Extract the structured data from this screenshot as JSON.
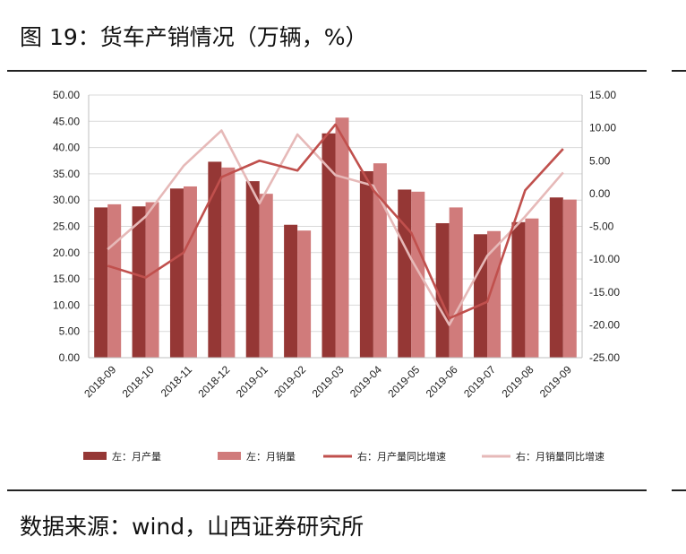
{
  "figure": {
    "title": "图 19：货车产销情况（万辆，%）",
    "source": "数据来源：wind，山西证券研究所"
  },
  "chart_data": {
    "type": "bar",
    "categories": [
      "2018-09",
      "2018-10",
      "2018-11",
      "2018-12",
      "2019-01",
      "2019-02",
      "2019-03",
      "2019-04",
      "2019-05",
      "2019-06",
      "2019-07",
      "2019-08",
      "2019-09"
    ],
    "y_left": {
      "min": 0,
      "max": 50,
      "step": 5,
      "ticks": [
        "0.00",
        "5.00",
        "10.00",
        "15.00",
        "20.00",
        "25.00",
        "30.00",
        "35.00",
        "40.00",
        "45.00",
        "50.00"
      ]
    },
    "y_right": {
      "min": -25,
      "max": 15,
      "step": 5,
      "ticks": [
        "-25.00",
        "-20.00",
        "-15.00",
        "-10.00",
        "-5.00",
        "0.00",
        "5.00",
        "10.00",
        "15.00"
      ]
    },
    "grid": true,
    "legend_position": "bottom",
    "series": [
      {
        "name": "左：月产量",
        "type": "bar",
        "axis": "left",
        "color": "#953735",
        "values": [
          28.6,
          28.8,
          32.2,
          37.3,
          33.6,
          25.3,
          42.7,
          35.5,
          32.0,
          25.6,
          23.5,
          25.8,
          30.5
        ]
      },
      {
        "name": "左：月销量",
        "type": "bar",
        "axis": "left",
        "color": "#D07B7B",
        "values": [
          29.2,
          29.6,
          32.6,
          36.2,
          31.2,
          24.2,
          45.7,
          37.0,
          31.6,
          28.6,
          24.1,
          26.5,
          30.1
        ]
      },
      {
        "name": "右：月产量同比增速",
        "type": "line",
        "axis": "right",
        "color": "#C0504D",
        "values": [
          -11.0,
          -12.8,
          -9.0,
          2.5,
          5.0,
          3.5,
          10.5,
          0.5,
          -6.0,
          -19.0,
          -16.5,
          0.5,
          6.8
        ]
      },
      {
        "name": "右：月销量同比增速",
        "type": "line",
        "axis": "right",
        "color": "#E6B9B8",
        "values": [
          -8.5,
          -3.5,
          4.2,
          9.6,
          -1.5,
          9.0,
          2.8,
          1.2,
          -10.0,
          -20.0,
          -9.5,
          -3.5,
          3.2
        ]
      }
    ]
  }
}
